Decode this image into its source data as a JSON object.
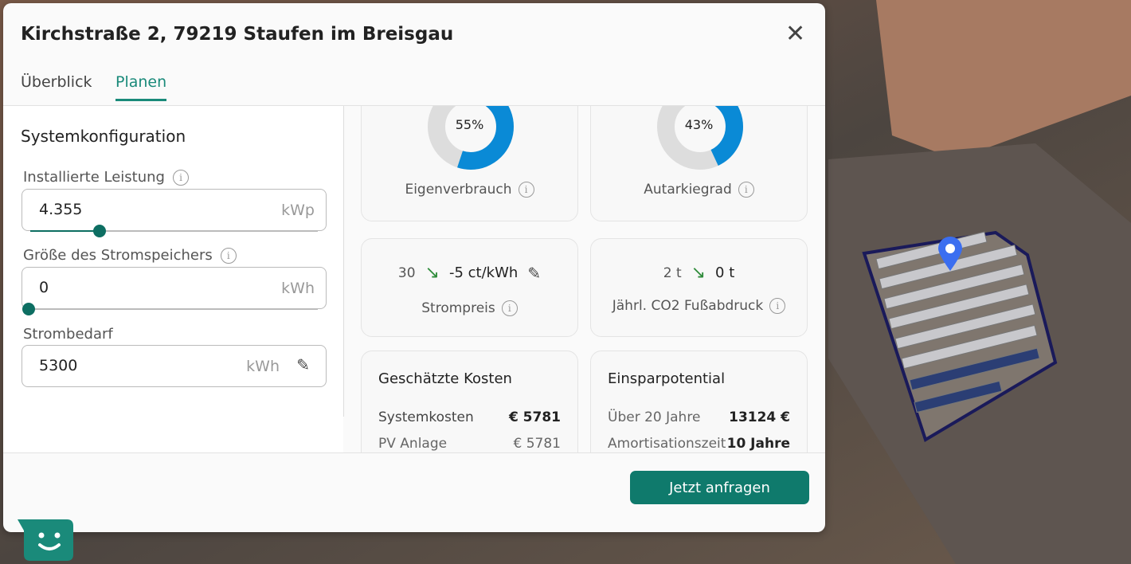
{
  "header": {
    "title": "Kirchstraße 2, 79219 Staufen im Breisgau",
    "close_icon": "close-icon"
  },
  "tabs": [
    {
      "label": "Überblick",
      "active": false
    },
    {
      "label": "Planen",
      "active": true
    }
  ],
  "config": {
    "heading": "Systemkonfiguration",
    "power": {
      "label": "Installierte Leistung",
      "value": "4.355",
      "unit": "kWp",
      "slider_fraction": 0.24
    },
    "storage": {
      "label": "Größe des Stromspeichers",
      "value": "0",
      "unit": "kWh",
      "slider_fraction": 0
    },
    "demand": {
      "label": "Strombedarf",
      "value": "5300",
      "unit": "kWh"
    }
  },
  "stats": {
    "eigenverbrauch": {
      "value": "55%",
      "percent": 55,
      "label": "Eigenverbrauch"
    },
    "autarkie": {
      "value": "43%",
      "percent": 43,
      "label": "Autarkiegrad"
    },
    "strompreis": {
      "from": "30",
      "to": "-5 ct/kWh",
      "label": "Strompreis"
    },
    "co2": {
      "from": "2 t",
      "to": "0 t",
      "label": "Jährl. CO2 Fußabdruck"
    }
  },
  "kosten": {
    "title": "Geschätzte Kosten",
    "rows": [
      {
        "k": "Systemkosten",
        "v": "€ 5781"
      },
      {
        "k": "PV Anlage",
        "v": "€ 5781"
      }
    ]
  },
  "einsparung": {
    "title": "Einsparpotential",
    "rows": [
      {
        "k": "Über 20 Jahre",
        "v": "13124 €"
      },
      {
        "k": "Amortisationszeit",
        "v": "10 Jahre"
      }
    ]
  },
  "footer": {
    "cta": "Jetzt anfragen"
  },
  "colors": {
    "accent": "#0f7a6c",
    "donut": "#0a8ad6",
    "arrow": "#2e8b3a"
  }
}
